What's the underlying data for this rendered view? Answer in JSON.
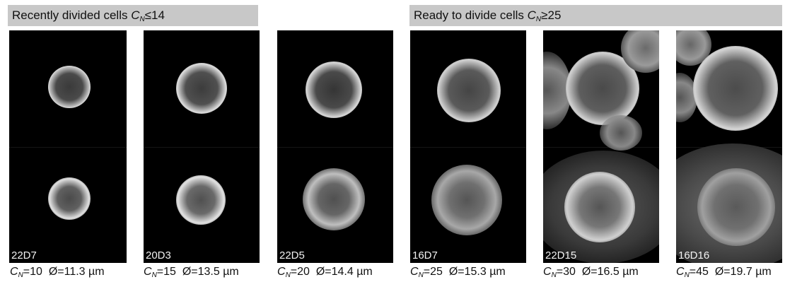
{
  "groups": [
    {
      "title_prefix": "Recently divided cells ",
      "symbol": "C",
      "subscript": "N",
      "suffix": "≤14"
    },
    {
      "title_prefix": "Ready to divide cells ",
      "symbol": "C",
      "subscript": "N",
      "suffix": "≥25"
    }
  ],
  "panels": [
    {
      "id": "22D7",
      "cn_symbol": "C",
      "cn_sub": "N",
      "cn_value": "=10",
      "diameter": "Ø=11.3 µm"
    },
    {
      "id": "20D3",
      "cn_symbol": "C",
      "cn_sub": "N",
      "cn_value": "=15",
      "diameter": "Ø=13.5 µm"
    },
    {
      "id": "22D5",
      "cn_symbol": "C",
      "cn_sub": "N",
      "cn_value": "=20",
      "diameter": "Ø=14.4 µm"
    },
    {
      "id": "16D7",
      "cn_symbol": "C",
      "cn_sub": "N",
      "cn_value": "=25",
      "diameter": "Ø=15.3 µm"
    },
    {
      "id": "22D15",
      "cn_symbol": "C",
      "cn_sub": "N",
      "cn_value": "=30",
      "diameter": "Ø=16.5 µm"
    },
    {
      "id": "16D16",
      "cn_symbol": "C",
      "cn_sub": "N",
      "cn_value": "=45",
      "diameter": "Ø=19.7 µm"
    }
  ]
}
